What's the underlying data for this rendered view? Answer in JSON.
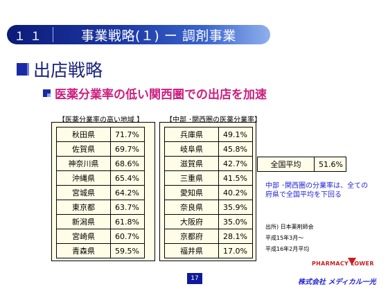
{
  "header": {
    "number": "１１",
    "title": "事業戦略(１) ー 調剤事業"
  },
  "heading": "出店戦略",
  "subheading": "医薬分業率の低い関西圏での出店を加速",
  "left_table": {
    "caption": "【医薬分業率の高い地域 】",
    "rows": [
      {
        "pref": "秋田県",
        "value": "71.7%"
      },
      {
        "pref": "佐賀県",
        "value": "69.7%"
      },
      {
        "pref": "神奈川県",
        "value": "68.6%"
      },
      {
        "pref": "沖縄県",
        "value": "65.4%"
      },
      {
        "pref": "宮城県",
        "value": "64.2%"
      },
      {
        "pref": "東京都",
        "value": "63.7%"
      },
      {
        "pref": "新潟県",
        "value": "61.8%"
      },
      {
        "pref": "宮崎県",
        "value": "60.7%"
      },
      {
        "pref": "青森県",
        "value": "59.5%"
      }
    ]
  },
  "mid_table": {
    "caption": "【中部 ･関西圏の医薬分業率】",
    "rows": [
      {
        "pref": "兵庫県",
        "value": "49.1%"
      },
      {
        "pref": "岐阜県",
        "value": "45.8%"
      },
      {
        "pref": "滋賀県",
        "value": "42.7%"
      },
      {
        "pref": "三重県",
        "value": "41.5%"
      },
      {
        "pref": "愛知県",
        "value": "40.2%"
      },
      {
        "pref": "奈良県",
        "value": "35.9%"
      },
      {
        "pref": "大阪府",
        "value": "35.0%"
      },
      {
        "pref": "京都府",
        "value": "28.1%"
      },
      {
        "pref": "福井県",
        "value": "17.0%"
      }
    ]
  },
  "national": {
    "label": "全国平均",
    "value": "51.6%"
  },
  "note": "中部 ･関西圏の分業率は、全ての府県で全国平均を下回る",
  "source": {
    "line1": "出所) 日本薬剤師会",
    "line2": "平成15年3月～",
    "line3": "平成16年2月平均"
  },
  "page_number": "17",
  "logo": {
    "top": "PHARMACY LOWER",
    "bottom": "株式会社 メディカル一光"
  },
  "colors": {
    "header": "#1d3aa6",
    "heading": "#1a237e",
    "subheading": "#cc1d7e",
    "note": "#1f1fd6",
    "cell_bg": "#fffde8"
  }
}
